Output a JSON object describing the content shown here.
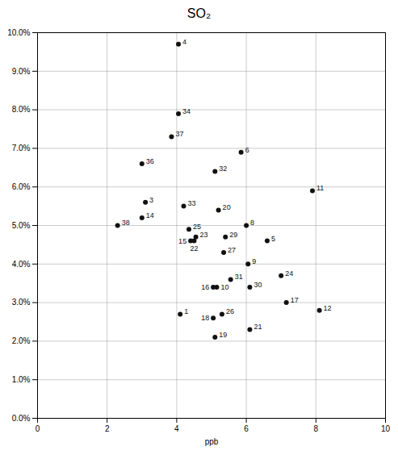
{
  "chart_data": {
    "type": "scatter",
    "title": "SO₂",
    "xlabel": "ppb",
    "labels": [
      "4",
      "34",
      "37",
      "6",
      "36",
      "32",
      "11",
      "3",
      "33",
      "14",
      "20",
      "38",
      "8",
      "25",
      "23",
      "15",
      "22",
      "29",
      "5",
      "27",
      "9",
      "31",
      "16",
      "10",
      "30",
      "24",
      "17",
      "12",
      "1",
      "18",
      "26",
      "21",
      "19"
    ],
    "x": [
      4.05,
      4.05,
      3.85,
      5.85,
      3.0,
      5.1,
      7.9,
      3.1,
      4.2,
      3.0,
      5.2,
      2.3,
      6.0,
      4.35,
      4.55,
      4.4,
      4.5,
      5.4,
      6.6,
      5.35,
      6.05,
      5.55,
      5.05,
      5.15,
      6.1,
      7.0,
      7.15,
      8.1,
      4.1,
      5.05,
      5.3,
      6.1,
      5.1
    ],
    "values": [
      0.097,
      0.079,
      0.073,
      0.069,
      0.066,
      0.064,
      0.059,
      0.056,
      0.055,
      0.052,
      0.054,
      0.05,
      0.05,
      0.049,
      0.047,
      0.046,
      0.046,
      0.047,
      0.046,
      0.043,
      0.04,
      0.036,
      0.034,
      0.034,
      0.034,
      0.037,
      0.03,
      0.028,
      0.027,
      0.026,
      0.027,
      0.023,
      0.021
    ],
    "color": "#111111",
    "marker": "o",
    "xlim": [
      0,
      10
    ],
    "ylim": [
      0.0,
      0.1
    ],
    "xticks": [
      0,
      2,
      4,
      6,
      8,
      10
    ],
    "yticks": [
      {
        "value": 0.0,
        "label": "0.0%"
      },
      {
        "value": 0.01,
        "label": "1.0%"
      },
      {
        "value": 0.02,
        "label": "2.0%"
      },
      {
        "value": 0.03,
        "label": "3.0%"
      },
      {
        "value": 0.04,
        "label": "4.0%"
      },
      {
        "value": 0.05,
        "label": "5.0%"
      },
      {
        "value": 0.06,
        "label": "6.0%"
      },
      {
        "value": 0.07,
        "label": "7.0%"
      },
      {
        "value": 0.08,
        "label": "8.0%"
      },
      {
        "value": 0.09,
        "label": "9.0%"
      },
      {
        "value": 0.1,
        "label": "10.0%"
      }
    ],
    "grid": true
  }
}
